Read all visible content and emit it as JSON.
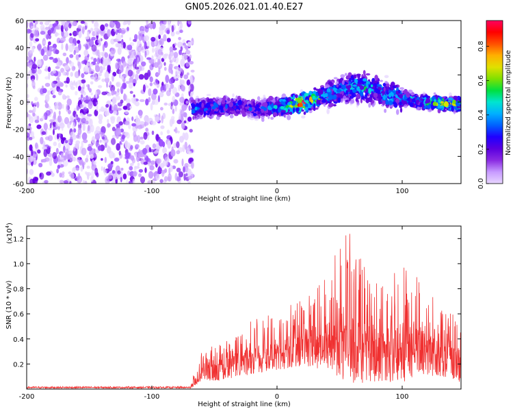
{
  "title": "GN05.2026.021.01.40.E27",
  "chart_data": [
    {
      "type": "heatmap",
      "xlabel": "Height of straight line (km)",
      "ylabel": "Frequency (Hz)",
      "xlim": [
        -200,
        147
      ],
      "ylim": [
        -60,
        60
      ],
      "xticks": [
        "-200",
        "-100",
        "0",
        "100"
      ],
      "yticks": [
        "-60",
        "-40",
        "-20",
        "0",
        "20",
        "40",
        "60"
      ],
      "colorbar": {
        "label": "Normalized spectral amplitude",
        "range": [
          0,
          0.95
        ],
        "ticks": [
          "0.0",
          "0.2",
          "0.4",
          "0.6",
          "0.8"
        ],
        "colors": [
          "#e8d6ff",
          "#c79bff",
          "#8a2be2",
          "#5b00e0",
          "#2000ff",
          "#0060ff",
          "#00b0ff",
          "#00e5d0",
          "#00e040",
          "#80e000",
          "#e0e000",
          "#ffb000",
          "#ff5000",
          "#ff0000",
          "#ff0060"
        ]
      },
      "noise_region": {
        "x_range": [
          -200,
          -67
        ],
        "freq_range": [
          -60,
          60
        ]
      },
      "ridge": {
        "x": [
          -67,
          -50,
          -30,
          -15,
          0,
          20,
          40,
          55,
          70,
          85,
          100,
          115,
          130,
          147
        ],
        "freq": [
          -5,
          -4,
          -3,
          -6,
          -3,
          -1,
          5,
          10,
          12,
          6,
          3,
          0,
          -1,
          -2
        ],
        "peak_amplitude": [
          0.35,
          0.35,
          0.3,
          0.3,
          0.45,
          0.9,
          0.4,
          0.4,
          0.5,
          0.4,
          0.45,
          0.45,
          0.75,
          0.6
        ]
      }
    },
    {
      "type": "line",
      "xlabel": "Height of straight line (km)",
      "ylabel": "SNR (10 * v/v)",
      "scale_label": "(x10",
      "scale_exp": "4",
      "scale_close": ")",
      "xlim": [
        -200,
        147
      ],
      "ylim": [
        0,
        1.3
      ],
      "xticks": [
        "-200",
        "-100",
        "0",
        "100"
      ],
      "yticks": [
        "0.2",
        "0.4",
        "0.6",
        "0.8",
        "1.0",
        "1.2"
      ],
      "series": [
        {
          "color": "#f03030",
          "envelope_x": [
            -200,
            -70,
            -60,
            -40,
            -20,
            0,
            20,
            40,
            55,
            70,
            85,
            100,
            115,
            130,
            147
          ],
          "envelope_max": [
            0.02,
            0.02,
            0.3,
            0.4,
            0.55,
            0.62,
            0.75,
            0.9,
            1.3,
            1.0,
            0.95,
            1.0,
            0.9,
            0.65,
            0.6
          ],
          "envelope_min": [
            0.0,
            0.0,
            0.05,
            0.08,
            0.12,
            0.15,
            0.18,
            0.15,
            0.05,
            0.05,
            0.05,
            0.05,
            0.1,
            0.1,
            0.05
          ]
        }
      ]
    }
  ]
}
